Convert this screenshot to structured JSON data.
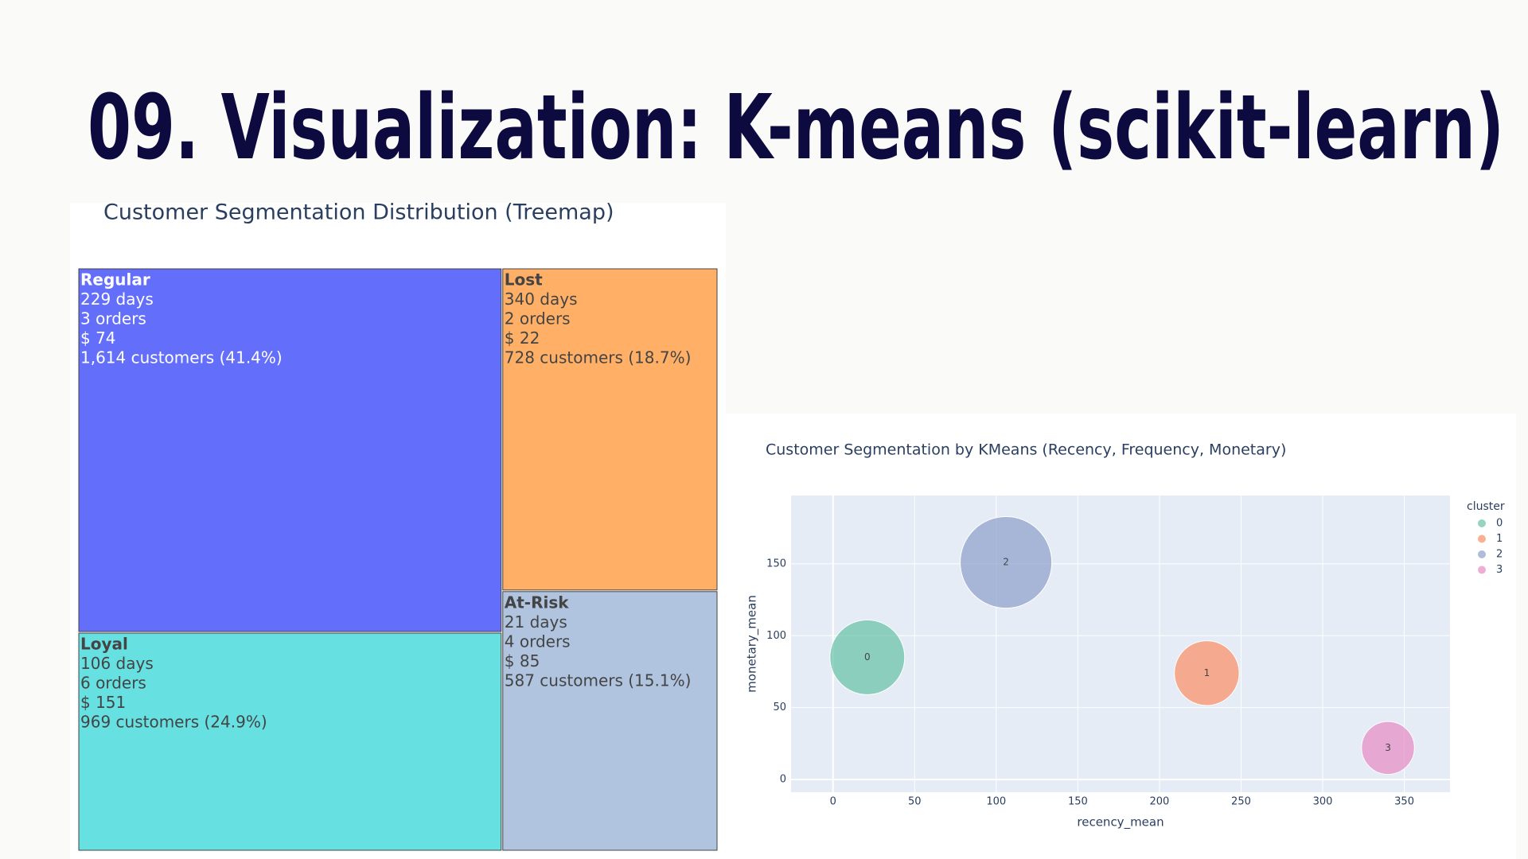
{
  "title": "09. Visualization: K-means (scikit-learn)",
  "chart_data": [
    {
      "type": "treemap",
      "title": "Customer Segmentation Distribution (Treemap)",
      "nodes": [
        {
          "name": "Regular",
          "lines": [
            "229 days",
            "3 orders",
            "$ 74",
            "1,614 customers (41.4%)"
          ],
          "value": 1614,
          "color": "#636efa",
          "text_color": "#ffffff"
        },
        {
          "name": "Loyal",
          "lines": [
            "106 days",
            "6 orders",
            "$ 151",
            "969 customers (24.9%)"
          ],
          "value": 969,
          "color": "#66e0e0",
          "text_color": "#444444"
        },
        {
          "name": "Lost",
          "lines": [
            "340 days",
            "2 orders",
            "$ 22",
            "728 customers (18.7%)"
          ],
          "value": 728,
          "color": "#ffb066",
          "text_color": "#444444"
        },
        {
          "name": "At-Risk",
          "lines": [
            "21 days",
            "4 orders",
            "$ 85",
            "587 customers (15.1%)"
          ],
          "value": 587,
          "color": "#b0c4df",
          "text_color": "#444444"
        }
      ]
    },
    {
      "type": "bubble",
      "title": "Customer Segmentation by KMeans (Recency, Frequency, Monetary)",
      "x_label": "recency_mean",
      "y_label": "monetary_mean",
      "legend_title": "cluster",
      "xlim": [
        -25.7,
        378
      ],
      "ylim": [
        -8.8,
        197.5
      ],
      "xticks": [
        0,
        50,
        100,
        150,
        200,
        250,
        300,
        350
      ],
      "yticks": [
        0,
        50,
        100,
        150
      ],
      "grid": true,
      "legend": "right",
      "series": [
        {
          "name": "0",
          "color": "#66c2a5",
          "x": [
            21
          ],
          "values": [
            85
          ],
          "sizes": [
            4
          ]
        },
        {
          "name": "1",
          "color": "#fc8d62",
          "x": [
            229
          ],
          "values": [
            74
          ],
          "sizes": [
            3
          ]
        },
        {
          "name": "2",
          "color": "#8da0cb",
          "x": [
            106
          ],
          "values": [
            151
          ],
          "sizes": [
            6
          ]
        },
        {
          "name": "3",
          "color": "#e78ac3",
          "x": [
            340
          ],
          "values": [
            22
          ],
          "sizes": [
            2
          ]
        }
      ]
    }
  ]
}
